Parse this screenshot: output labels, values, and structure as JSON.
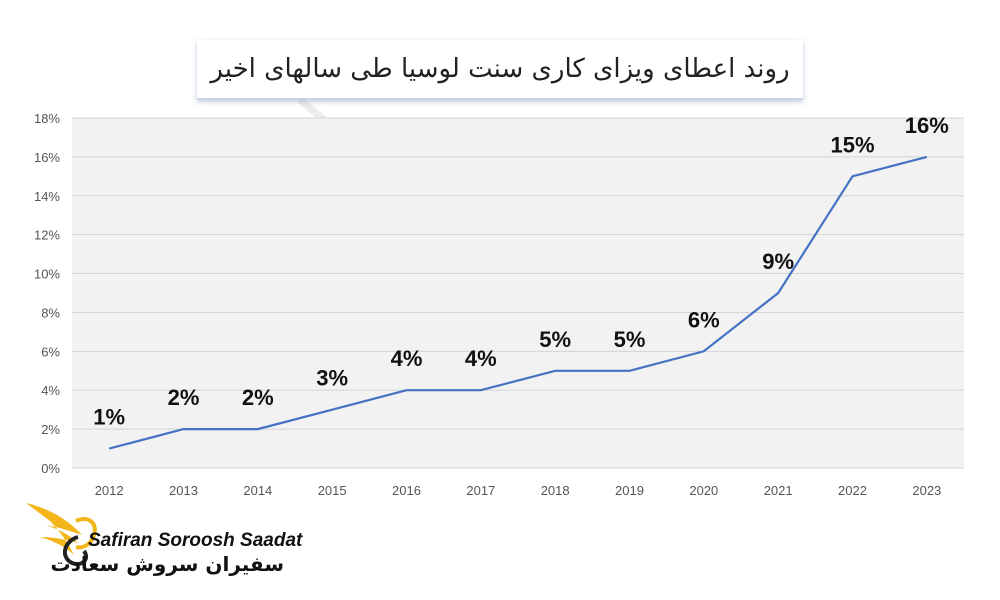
{
  "chart_data": {
    "type": "line",
    "title": "روند اعطای ویزای کاری سنت لوسیا طی سالهای اخیر",
    "categories": [
      "2012",
      "2013",
      "2014",
      "2015",
      "2016",
      "2017",
      "2018",
      "2019",
      "2020",
      "2021",
      "2022",
      "2023"
    ],
    "values": [
      1,
      2,
      2,
      3,
      4,
      4,
      5,
      5,
      6,
      9,
      15,
      16
    ],
    "data_labels": [
      "1%",
      "2%",
      "2%",
      "3%",
      "4%",
      "4%",
      "5%",
      "5%",
      "6%",
      "9%",
      "15%",
      "16%"
    ],
    "y_ticks": [
      "0%",
      "2%",
      "4%",
      "6%",
      "8%",
      "10%",
      "12%",
      "14%",
      "16%",
      "18%"
    ],
    "ylim": [
      0,
      18
    ],
    "line_color": "#4472c4",
    "grid": true,
    "plot_background": "#f2f2f2",
    "xlabel": "",
    "ylabel": ""
  },
  "brand": {
    "name_en": "Safiran Soroosh Saadat",
    "name_fa": "سفیران سروش سعادت",
    "accent": "#f2b51a"
  }
}
